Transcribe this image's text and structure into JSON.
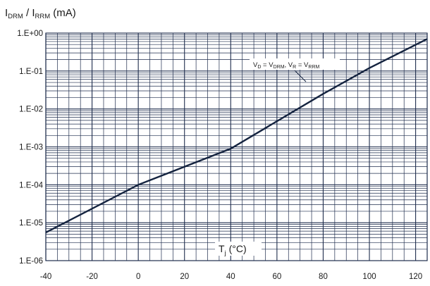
{
  "chart_data": {
    "type": "line",
    "title": "",
    "ylabel": {
      "main": "I",
      "sub1": "DRM",
      "sep": " / I",
      "sub2": "RRM",
      "unit": " (mA)"
    },
    "xlabel": {
      "main": "T",
      "sub": "j",
      "unit": " (°C)"
    },
    "x_ticks": [
      -40,
      -20,
      0,
      20,
      40,
      60,
      80,
      100,
      120
    ],
    "x_tick_labels": [
      "-40",
      "-20",
      "0",
      "20",
      "40",
      "60",
      "80",
      "100",
      "120"
    ],
    "xlim": [
      -40,
      125
    ],
    "y_scale": "log",
    "ylim": [
      1e-06,
      1
    ],
    "y_ticks": [
      1e-06,
      1e-05,
      0.0001,
      0.001,
      0.01,
      0.1,
      1
    ],
    "y_tick_labels": [
      "1.E-06",
      "1.E-05",
      "1.E-04",
      "1.E-03",
      "1.E-02",
      "1.E-01",
      "1.E+00"
    ],
    "grid": true,
    "series": [
      {
        "annotation": {
          "a": "V",
          "a_sub": "D",
          "b": " = V",
          "b_sub": "DRM",
          "c": ", V",
          "c_sub": "R",
          "d": " = V",
          "d_sub": "RRM"
        },
        "x": [
          -40,
          0,
          40,
          80,
          100,
          125
        ],
        "y": [
          5.5e-06,
          0.0001,
          0.0009,
          0.025,
          0.12,
          0.7
        ]
      }
    ],
    "colors": {
      "line": "#14233f",
      "grid": "#1f2d4d",
      "text": "#1a1a1a"
    }
  }
}
